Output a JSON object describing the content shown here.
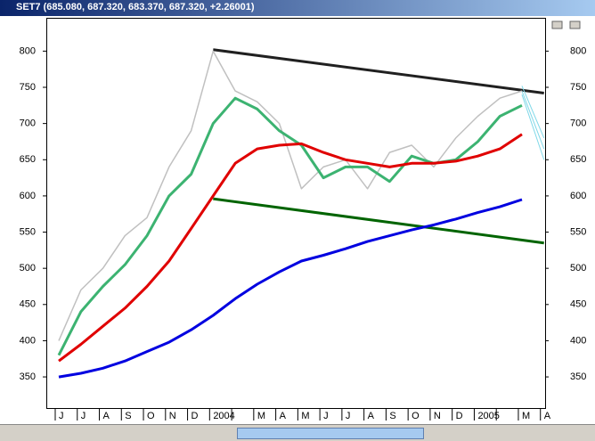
{
  "window_title": "SET7 (685.080, 687.320, 683.370, 687.320, +2.26001)",
  "chart_data": {
    "type": "line",
    "categories": [
      "J",
      "J",
      "A",
      "S",
      "O",
      "N",
      "D",
      "2004",
      null,
      "M",
      "A",
      "M",
      "J",
      "J",
      "A",
      "S",
      "O",
      "N",
      "D",
      "2005",
      null,
      "M",
      "A"
    ],
    "series": [
      {
        "color": "#c0c0c0",
        "values": [
          400,
          470,
          500,
          545,
          570,
          640,
          690,
          800,
          745,
          730,
          700,
          610,
          640,
          650,
          610,
          660,
          670,
          640,
          680,
          710,
          735,
          745,
          null
        ]
      },
      {
        "color": "#3cb371",
        "values": [
          380,
          440,
          475,
          505,
          545,
          600,
          630,
          700,
          735,
          720,
          690,
          670,
          625,
          640,
          640,
          620,
          655,
          645,
          650,
          675,
          710,
          725,
          null
        ]
      },
      {
        "color": "#e00000",
        "values": [
          372,
          395,
          420,
          445,
          475,
          510,
          555,
          600,
          645,
          665,
          670,
          672,
          660,
          650,
          645,
          640,
          645,
          645,
          648,
          655,
          665,
          685,
          null
        ]
      },
      {
        "color": "#0000e0",
        "values": [
          350,
          355,
          362,
          372,
          385,
          398,
          415,
          435,
          458,
          478,
          495,
          510,
          518,
          527,
          537,
          545,
          553,
          560,
          568,
          577,
          585,
          595,
          null
        ]
      }
    ],
    "trendlines": [
      {
        "color": "#202020",
        "start": 7,
        "end": 22,
        "values": [
          802,
          742
        ]
      },
      {
        "color": "#006400",
        "start": 7,
        "end": 22,
        "values": [
          596,
          535
        ]
      },
      {
        "color": "#7fd8e8",
        "start": 21,
        "end": 22,
        "values": [
          752,
          680
        ]
      },
      {
        "color": "#7fd8e8",
        "start": 21,
        "end": 22,
        "values": [
          745,
          665
        ]
      },
      {
        "color": "#7fd8e8",
        "start": 21,
        "end": 22,
        "values": [
          740,
          650
        ]
      }
    ],
    "ylim": [
      307,
      846
    ],
    "yticks": [
      350,
      400,
      450,
      500,
      550,
      600,
      650,
      700,
      750,
      800
    ]
  }
}
